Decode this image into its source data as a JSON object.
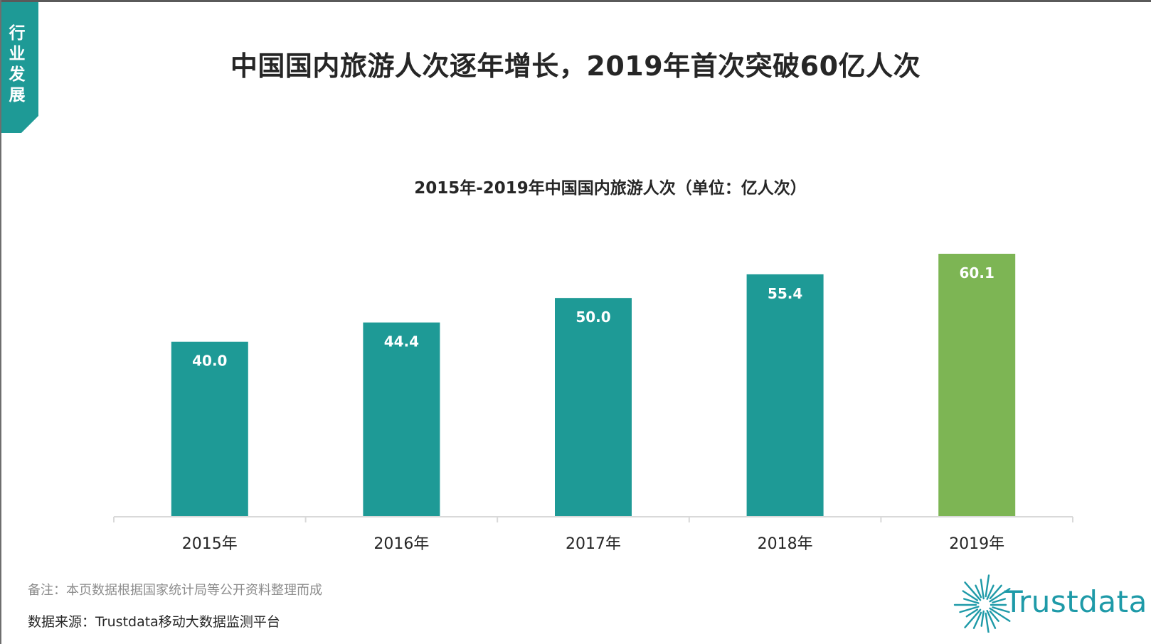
{
  "section_tab": {
    "label": "行业发展"
  },
  "slide_title": "中国国内旅游人次逐年增长，2019年首次突破60亿人次",
  "note": "备注：本页数据根据国家统计局等公开资料整理而成",
  "source": "数据来源：Trustdata移动大数据监测平台",
  "logo": {
    "text": "Trustdata"
  },
  "colors": {
    "primary": "#1e9a96",
    "highlight": "#7db554",
    "axis": "#d9d9d9",
    "logo": "#1e9aa8"
  },
  "chart_data": {
    "type": "bar",
    "title": "2015年-2019年中国国内旅游人次（单位：亿人次）",
    "categories": [
      "2015年",
      "2016年",
      "2017年",
      "2018年",
      "2019年"
    ],
    "values": [
      40.0,
      44.4,
      50.0,
      55.4,
      60.1
    ],
    "data_labels": [
      "40.0",
      "44.4",
      "50.0",
      "55.4",
      "60.1"
    ],
    "highlight_index": 4,
    "ylim": [
      0,
      60.1
    ],
    "xlabel": "",
    "ylabel": "",
    "grid": false,
    "legend": "none"
  }
}
